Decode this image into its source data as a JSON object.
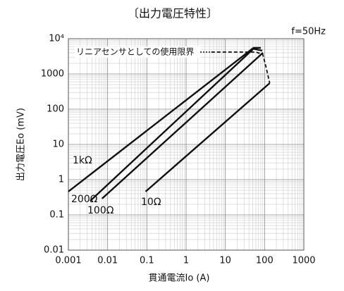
{
  "chart_data": {
    "type": "line",
    "title": "〔出力電圧特性〕",
    "annotation": "f=50Hz",
    "limit_label": "リニアセンサとしての使用限界",
    "x_label": "貫通電流Io (A)",
    "y_label": "出力電圧Eo (mV)",
    "log_x": true,
    "log_y": true,
    "grid": true,
    "xlim": [
      0.001,
      1000
    ],
    "ylim": [
      0.01,
      10000
    ],
    "xticks": [
      0.001,
      0.01,
      0.1,
      1,
      10,
      100,
      1000
    ],
    "yticks": [
      0.01,
      0.1,
      1,
      10,
      100,
      1000,
      {
        "value": 10000,
        "label": "10⁴"
      }
    ],
    "series": [
      {
        "name": "1kΩ",
        "color": "#111",
        "x": [
          0.001,
          52,
          80
        ],
        "values": [
          0.46,
          5500,
          5500
        ]
      },
      {
        "name": "200Ω",
        "color": "#111",
        "x": [
          0.0036,
          52,
          87
        ],
        "values": [
          0.25,
          5200,
          4600
        ]
      },
      {
        "name": "100Ω",
        "color": "#111",
        "x": [
          0.0072,
          91
        ],
        "values": [
          0.29,
          4000
        ]
      },
      {
        "name": "10Ω",
        "color": "#111",
        "x": [
          0.093,
          135
        ],
        "values": [
          0.46,
          550
        ]
      },
      {
        "color": "#111",
        "dash": true,
        "x": [
          4.4,
          60,
          90,
          110,
          135
        ],
        "values": [
          4200,
          4200,
          3600,
          1500,
          550
        ]
      }
    ]
  }
}
